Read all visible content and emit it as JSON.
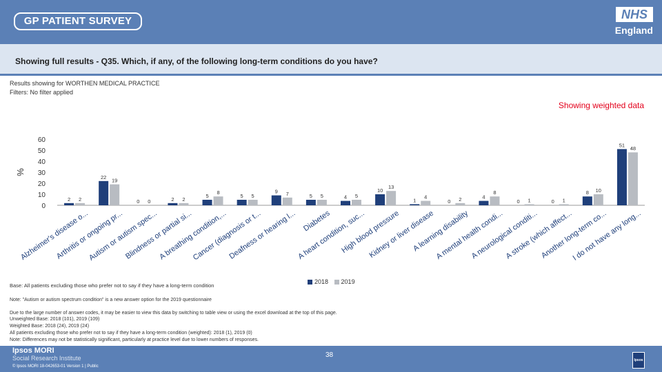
{
  "header": {
    "logo_text": "GP PATIENT SURVEY",
    "nhs_text": "NHS",
    "england_text": "England"
  },
  "question": "Showing full results - Q35.  Which, if any, of the following long-term conditions do you have?",
  "results_for": "Results showing for WORTHEN MEDICAL PRACTICE",
  "filters": "Filters: No filter applied",
  "weighted_label": "Showing weighted data",
  "colors": {
    "brand": "#5b80b6",
    "series_2018": "#1f3f7a",
    "series_2019": "#b8bcc2",
    "accent_red": "#e3001b"
  },
  "chart_data": {
    "type": "bar",
    "ylabel": "%",
    "ylim": [
      0,
      60
    ],
    "yticks": [
      0,
      10,
      20,
      30,
      40,
      50,
      60
    ],
    "categories": [
      "Alzheimer's disease o...",
      "Arthritis or ongoing pr...",
      "Autism or autism spec...",
      "Blindness or partial si...",
      "A breathing condition,...",
      "Cancer (diagnosis or t...",
      "Deafness or hearing l...",
      "Diabetes",
      "A heart condition, suc...",
      "High blood pressure",
      "Kidney or liver disease",
      "A learning disability",
      "A mental health condi...",
      "A neurological conditi...",
      "A stroke (which affect...",
      "Another long-term co...",
      "I do not have any long..."
    ],
    "series": [
      {
        "name": "2018",
        "values": [
          2,
          22,
          0,
          2,
          5,
          5,
          9,
          5,
          4,
          10,
          1,
          0,
          4,
          0,
          0,
          8,
          51
        ]
      },
      {
        "name": "2019",
        "values": [
          2,
          19,
          0,
          2,
          8,
          5,
          7,
          5,
          5,
          13,
          4,
          2,
          8,
          1,
          1,
          10,
          48
        ]
      }
    ]
  },
  "base_note": "Base: All patients excluding those who prefer not to say if they have a long-term condition",
  "notes": [
    "Note: \"Autism or autism spectrum condition\" is a new answer option for the 2019 questionnaire",
    "Due to the large number of answer codes, it may be easier to view this data by switching to table view or using the excel download at the top of this page.",
    "Unweighted Base: 2018 (101), 2019 (109)",
    "Weighted Base: 2018 (24), 2019 (24)",
    "All patients excluding those who prefer not to say if they have a long-term condition (weighted): 2018 (1), 2019 (0)",
    "Note: Differences may not be statistically significant, particularly at practice level due to lower numbers of responses."
  ],
  "footer": {
    "ipsos": "Ipsos MORI",
    "sri": "Social Research Institute",
    "copyright": "© Ipsos MORI      18-042653-01 Version 1 | Public",
    "page": "38",
    "ipsos_logo": "Ipsos"
  }
}
